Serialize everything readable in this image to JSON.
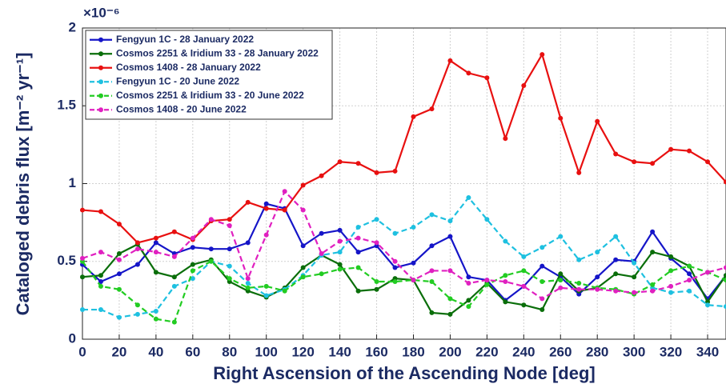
{
  "chart_data": {
    "type": "line",
    "multiplier": "×10⁻⁶",
    "xlabel": "Right Ascension of the Ascending Node [deg]",
    "ylabel": "Cataloged debris flux [m⁻² yr⁻¹]",
    "x": [
      0,
      10,
      20,
      30,
      40,
      50,
      60,
      70,
      80,
      90,
      100,
      110,
      120,
      130,
      140,
      150,
      160,
      170,
      180,
      190,
      200,
      210,
      220,
      230,
      240,
      250,
      260,
      270,
      280,
      290,
      300,
      310,
      320,
      330,
      340,
      350
    ],
    "xlim": [
      0,
      350
    ],
    "xticks": [
      0,
      20,
      40,
      60,
      80,
      100,
      120,
      140,
      160,
      180,
      200,
      220,
      240,
      260,
      280,
      300,
      320,
      340
    ],
    "ylim": [
      0,
      2
    ],
    "yticks": [
      0,
      0.5,
      1,
      1.5,
      2
    ],
    "grid": true,
    "legend": "upper left",
    "series": [
      {
        "name": "Fengyun 1C - 28 January 2022",
        "color": "#1515c8",
        "dashed": false,
        "values": [
          0.48,
          0.37,
          0.42,
          0.48,
          0.62,
          0.55,
          0.59,
          0.58,
          0.58,
          0.62,
          0.87,
          0.84,
          0.6,
          0.68,
          0.7,
          0.56,
          0.6,
          0.46,
          0.49,
          0.6,
          0.66,
          0.4,
          0.38,
          0.25,
          0.34,
          0.47,
          0.4,
          0.29,
          0.4,
          0.51,
          0.5,
          0.69,
          0.52,
          0.42,
          0.26,
          0.41
        ]
      },
      {
        "name": "Cosmos 2251 & Iridium 33 - 28 January 2022",
        "color": "#0a6e0a",
        "dashed": false,
        "values": [
          0.4,
          0.41,
          0.55,
          0.61,
          0.43,
          0.4,
          0.48,
          0.51,
          0.37,
          0.31,
          0.27,
          0.33,
          0.46,
          0.54,
          0.48,
          0.31,
          0.32,
          0.39,
          0.38,
          0.17,
          0.16,
          0.25,
          0.36,
          0.24,
          0.22,
          0.19,
          0.42,
          0.31,
          0.33,
          0.42,
          0.4,
          0.56,
          0.53,
          0.47,
          0.24,
          0.41
        ]
      },
      {
        "name": "Cosmos 1408 - 28 January 2022",
        "color": "#e81010",
        "dashed": false,
        "values": [
          0.83,
          0.82,
          0.74,
          0.62,
          0.65,
          0.69,
          0.64,
          0.76,
          0.77,
          0.88,
          0.84,
          0.83,
          0.99,
          1.05,
          1.14,
          1.13,
          1.07,
          1.08,
          1.43,
          1.48,
          1.79,
          1.71,
          1.68,
          1.29,
          1.63,
          1.83,
          1.42,
          1.07,
          1.4,
          1.19,
          1.14,
          1.13,
          1.22,
          1.21,
          1.14,
          1.01
        ]
      },
      {
        "name": "Fengyun 1C - 20 June 2022",
        "color": "#1ec0e0",
        "dashed": true,
        "values": [
          0.19,
          0.19,
          0.14,
          0.16,
          0.18,
          0.34,
          0.39,
          0.5,
          0.47,
          0.36,
          0.28,
          0.32,
          0.41,
          0.54,
          0.56,
          0.72,
          0.77,
          0.68,
          0.72,
          0.8,
          0.76,
          0.91,
          0.77,
          0.63,
          0.53,
          0.59,
          0.66,
          0.51,
          0.56,
          0.66,
          0.49,
          0.33,
          0.3,
          0.31,
          0.22,
          0.21
        ]
      },
      {
        "name": "Cosmos 2251 & Iridium 33 - 20 June 2022",
        "color": "#22cc22",
        "dashed": true,
        "values": [
          0.5,
          0.34,
          0.32,
          0.22,
          0.13,
          0.11,
          0.44,
          0.5,
          0.39,
          0.33,
          0.34,
          0.31,
          0.4,
          0.42,
          0.45,
          0.46,
          0.37,
          0.37,
          0.38,
          0.37,
          0.26,
          0.21,
          0.35,
          0.41,
          0.44,
          0.37,
          0.38,
          0.36,
          0.33,
          0.32,
          0.29,
          0.35,
          0.44,
          0.47,
          0.43,
          0.38
        ]
      },
      {
        "name": "Cosmos 1408 - 20 June 2022",
        "color": "#e020c0",
        "dashed": true,
        "values": [
          0.52,
          0.56,
          0.51,
          0.58,
          0.56,
          0.53,
          0.65,
          0.77,
          0.73,
          0.39,
          0.67,
          0.95,
          0.83,
          0.55,
          0.63,
          0.65,
          0.62,
          0.5,
          0.38,
          0.44,
          0.44,
          0.36,
          0.38,
          0.37,
          0.34,
          0.26,
          0.33,
          0.32,
          0.32,
          0.31,
          0.3,
          0.31,
          0.34,
          0.38,
          0.43,
          0.46
        ]
      }
    ]
  }
}
